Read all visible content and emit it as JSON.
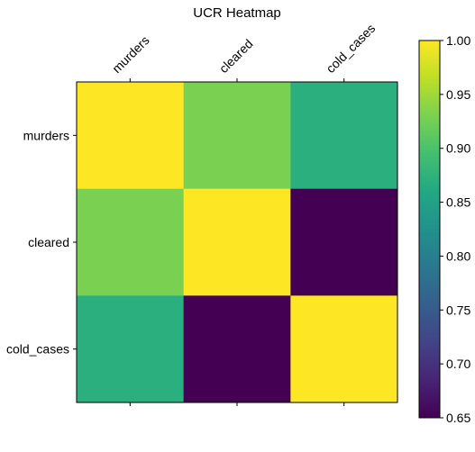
{
  "chart_data": {
    "type": "heatmap",
    "title": "UCR Heatmap",
    "x_categories": [
      "murders",
      "cleared",
      "cold_cases"
    ],
    "y_categories": [
      "murders",
      "cleared",
      "cold_cases"
    ],
    "values": [
      [
        1.0,
        0.93,
        0.87
      ],
      [
        0.93,
        1.0,
        0.65
      ],
      [
        0.87,
        0.65,
        1.0
      ]
    ],
    "colormap": "viridis",
    "colorbar": {
      "min": 0.65,
      "max": 1.0,
      "ticks": [
        0.65,
        0.7,
        0.75,
        0.8,
        0.85,
        0.9,
        0.95,
        1.0
      ],
      "tick_labels": [
        "0.65",
        "0.70",
        "0.75",
        "0.80",
        "0.85",
        "0.90",
        "0.95",
        "1.00"
      ]
    },
    "x_tick_position": "top",
    "x_tick_rotation": 45,
    "grid": false
  }
}
